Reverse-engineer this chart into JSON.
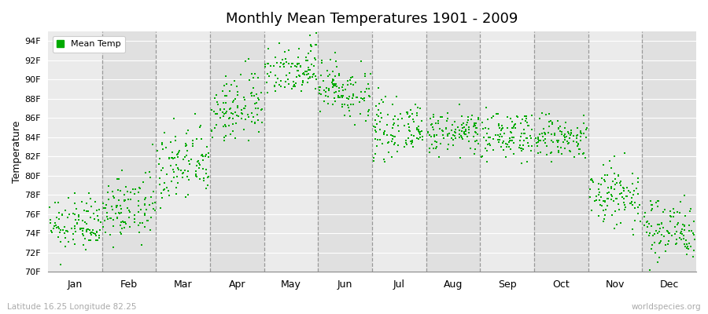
{
  "title": "Monthly Mean Temperatures 1901 - 2009",
  "ylabel": "Temperature",
  "ylim": [
    70,
    95
  ],
  "yticks": [
    70,
    72,
    74,
    76,
    78,
    80,
    82,
    84,
    86,
    88,
    90,
    92,
    94
  ],
  "ytick_labels": [
    "70F",
    "72F",
    "74F",
    "76F",
    "78F",
    "80F",
    "82F",
    "84F",
    "86F",
    "88F",
    "90F",
    "92F",
    "94F"
  ],
  "month_labels": [
    "Jan",
    "Feb",
    "Mar",
    "Apr",
    "May",
    "Jun",
    "Jul",
    "Aug",
    "Sep",
    "Oct",
    "Nov",
    "Dec"
  ],
  "dot_color": "#00aa00",
  "bg_color": "#ffffff",
  "plot_bg_color": "#ebebeb",
  "alt_band_color": "#e0e0e0",
  "legend_label": "Mean Temp",
  "footer_left": "Latitude 16.25 Longitude 82.25",
  "footer_right": "worldspecies.org",
  "n_years": 109,
  "monthly_mean": [
    74.8,
    76.5,
    81.0,
    87.0,
    91.2,
    89.0,
    84.8,
    84.5,
    84.2,
    83.8,
    78.0,
    74.5
  ],
  "monthly_std": [
    1.3,
    1.6,
    2.0,
    1.8,
    1.4,
    1.5,
    1.3,
    1.0,
    1.2,
    1.2,
    1.8,
    1.6
  ]
}
